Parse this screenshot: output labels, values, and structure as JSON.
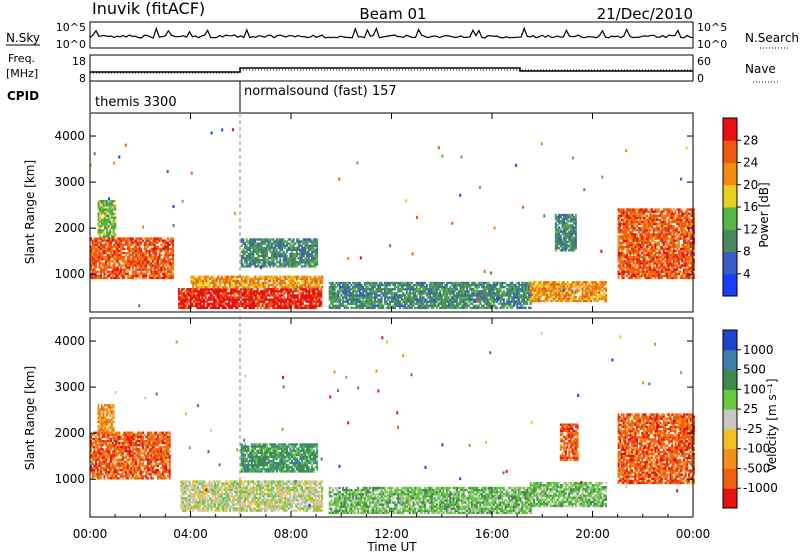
{
  "header": {
    "station": "Inuvik (fitACF)",
    "beam": "Beam 01",
    "date": "21/Dec/2010"
  },
  "nsky_panel": {
    "left_label": "N.Sky",
    "right_label": "N.Search",
    "left_ticks": [
      "10^5",
      "10^0"
    ],
    "right_ticks": [
      "10^5",
      "10^0"
    ]
  },
  "freq_panel": {
    "left_label_1": "Freq.",
    "left_label_2": "[MHz]",
    "right_label": "Nave",
    "left_ticks": [
      "18",
      "8"
    ],
    "right_ticks": [
      "60",
      "0"
    ]
  },
  "cpid_panel": {
    "label": "CPID",
    "programs": [
      {
        "name": "themis 3300",
        "start_hour": 0
      },
      {
        "name": "normalsound (fast) 157",
        "start_hour": 6
      }
    ]
  },
  "power_colorbar": {
    "label": "Power [dB]",
    "ticks": [
      "4",
      "8",
      "12",
      "16",
      "20",
      "24",
      "28"
    ],
    "colors": [
      "#1a3cff",
      "#3a5cc8",
      "#4a8a5a",
      "#55b845",
      "#e8d020",
      "#f08c10",
      "#f05a10",
      "#e81010"
    ]
  },
  "velocity_colorbar": {
    "label": "Velocity [m s⁻¹]",
    "ticks": [
      "1000",
      "500",
      "100",
      "25",
      "-25",
      "-100",
      "-500",
      "-1000"
    ],
    "colors": [
      "#2244cc",
      "#3f7fb0",
      "#3f8a4f",
      "#66c83d",
      "#c8c8c0",
      "#f5c020",
      "#f09018",
      "#f06010",
      "#e81010"
    ]
  },
  "time_axis": {
    "title": "Time UT",
    "ticks": [
      "00:00",
      "04:00",
      "08:00",
      "12:00",
      "16:00",
      "20:00",
      "00:00"
    ]
  },
  "chart_data": [
    {
      "type": "heatmap",
      "name": "power",
      "ylabel": "Slant Range [km]",
      "ylim": [
        180,
        4500
      ],
      "xlim": [
        0,
        24
      ],
      "yticks": [
        1000,
        2000,
        3000,
        4000
      ],
      "color_scale": "Power [dB]",
      "regions": [
        {
          "t0": 0.0,
          "t1": 3.3,
          "r0": 900,
          "r1": 1800,
          "level": 6
        },
        {
          "t0": 0.3,
          "t1": 1.0,
          "r0": 1800,
          "r1": 2600,
          "level": 3
        },
        {
          "t0": 3.5,
          "t1": 9.2,
          "r0": 250,
          "r1": 700,
          "level": 7
        },
        {
          "t0": 4.0,
          "t1": 9.2,
          "r0": 700,
          "r1": 950,
          "level": 5
        },
        {
          "t0": 6.0,
          "t1": 9.0,
          "r0": 1150,
          "r1": 1750,
          "level": 2
        },
        {
          "t0": 9.5,
          "t1": 17.5,
          "r0": 250,
          "r1": 800,
          "level": 2
        },
        {
          "t0": 17.5,
          "t1": 20.5,
          "r0": 400,
          "r1": 850,
          "level": 5
        },
        {
          "t0": 18.5,
          "t1": 19.3,
          "r0": 1500,
          "r1": 2300,
          "level": 2
        },
        {
          "t0": 21.0,
          "t1": 24.0,
          "r0": 900,
          "r1": 2400,
          "level": 6
        }
      ]
    },
    {
      "type": "heatmap",
      "name": "velocity",
      "ylabel": "Slant Range [km]",
      "ylim": [
        180,
        4500
      ],
      "xlim": [
        0,
        24
      ],
      "yticks": [
        1000,
        2000,
        3000,
        4000
      ],
      "color_scale": "Velocity [m s⁻¹]",
      "regions": [
        {
          "t0": 0.0,
          "t1": 3.2,
          "r0": 1000,
          "r1": 2000,
          "level": 7
        },
        {
          "t0": 0.3,
          "t1": 0.9,
          "r0": 2000,
          "r1": 2600,
          "level": 6
        },
        {
          "t0": 3.6,
          "t1": 9.2,
          "r0": 300,
          "r1": 950,
          "level": 4
        },
        {
          "t0": 6.0,
          "t1": 9.0,
          "r0": 1150,
          "r1": 1750,
          "level": 2
        },
        {
          "t0": 9.5,
          "t1": 17.5,
          "r0": 250,
          "r1": 800,
          "level": 3
        },
        {
          "t0": 17.5,
          "t1": 20.5,
          "r0": 400,
          "r1": 900,
          "level": 3
        },
        {
          "t0": 18.7,
          "t1": 19.4,
          "r0": 1400,
          "r1": 2200,
          "level": 7
        },
        {
          "t0": 21.0,
          "t1": 24.0,
          "r0": 900,
          "r1": 2400,
          "level": 7
        }
      ]
    }
  ]
}
